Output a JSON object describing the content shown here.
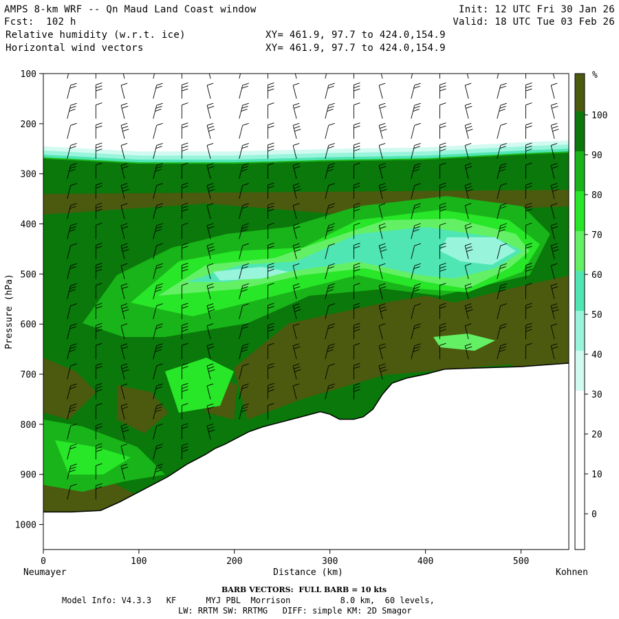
{
  "header": {
    "title": "AMPS 8-km WRF -- Qn Maud Land Coast window",
    "forecast": "Fcst:  102 h",
    "field1": "Relative humidity (w.r.t. ice)",
    "field2": "Horizontal wind vectors",
    "init": "Init: 12 UTC Fri 30 Jan 26",
    "valid": "Valid: 18 UTC Tue 03 Feb 26",
    "xy1": "XY= 461.9, 97.7 to 424.0,154.9",
    "xy2": "XY= 461.9, 97.7 to 424.0,154.9"
  },
  "footer": {
    "barb": "BARB VECTORS:  FULL BARB = 10 kts",
    "model1": "Model Info: V4.3.3   KF      MYJ PBL  Morrison          8.0 km,  60 levels,",
    "model2": "LW: RRTM SW: RRTMG   DIFF: simple KM: 2D Smagor"
  },
  "colors": {
    "band_20_30": "#ffffff",
    "band_30_40": "#d2faf0",
    "band_40_50": "#98f5dc",
    "band_50_60": "#50e6b4",
    "band_60_70": "#64f064",
    "band_70_80": "#28e628",
    "band_80_90": "#19b419",
    "band_90_100": "#0a780a",
    "band_100_plus": "#4b5a0f",
    "terrain": "#ffffff"
  },
  "chart_data": {
    "type": "cross-section contour",
    "ylabel": "Pressure (hPa)",
    "xlabel": "Distance (km)",
    "left_endpoint": "Neumayer",
    "right_endpoint": "Kohnen",
    "xlim": [
      0,
      550
    ],
    "ylim": [
      1050,
      100
    ],
    "y_ticks": [
      100,
      200,
      300,
      400,
      500,
      600,
      700,
      800,
      900,
      1000
    ],
    "x_ticks": [
      0,
      100,
      200,
      300,
      400,
      500
    ],
    "colorbar_unit": "%",
    "colorbar_ticks": [
      0,
      10,
      20,
      30,
      40,
      50,
      60,
      70,
      80,
      90,
      100
    ],
    "terrain_surface": {
      "x_km": [
        0,
        30,
        60,
        80,
        100,
        130,
        150,
        170,
        180,
        190,
        200,
        215,
        230,
        250,
        270,
        290,
        300,
        310,
        325,
        335,
        345,
        355,
        365,
        380,
        400,
        420,
        450,
        500,
        550
      ],
      "p_hpa": [
        975,
        975,
        972,
        955,
        935,
        905,
        880,
        860,
        848,
        840,
        830,
        815,
        805,
        795,
        785,
        775,
        780,
        790,
        790,
        785,
        770,
        740,
        718,
        708,
        700,
        690,
        688,
        685,
        678
      ]
    },
    "moist_top_hpa": [
      {
        "x_km": 0,
        "p_hpa": 270
      },
      {
        "x_km": 100,
        "p_hpa": 280
      },
      {
        "x_km": 200,
        "p_hpa": 280
      },
      {
        "x_km": 300,
        "p_hpa": 275
      },
      {
        "x_km": 400,
        "p_hpa": 272
      },
      {
        "x_km": 500,
        "p_hpa": 262
      },
      {
        "x_km": 550,
        "p_hpa": 258
      }
    ],
    "barb_columns_km": [
      25,
      55,
      85,
      115,
      145,
      175,
      205,
      235,
      265,
      295,
      325,
      355,
      385,
      415,
      445,
      475,
      505,
      535
    ],
    "barb_levels_hpa": [
      110,
      150,
      190,
      230,
      270,
      310,
      350,
      390,
      430,
      470,
      510,
      550,
      590,
      630,
      670,
      710,
      750,
      790,
      830,
      870,
      910,
      950
    ]
  }
}
